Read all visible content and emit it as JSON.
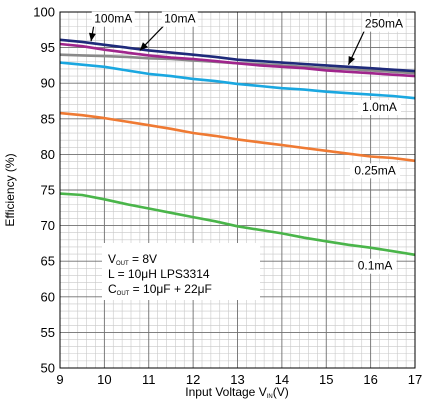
{
  "chart_data": {
    "type": "line",
    "title": "",
    "xlabel": {
      "text": "Input Voltage V",
      "sub": "IN",
      "unit": "(V)"
    },
    "ylabel": "Efficiency (%)",
    "xlim": [
      9,
      17
    ],
    "ylim": [
      50,
      100
    ],
    "x_ticks": [
      "9",
      "10",
      "11",
      "12",
      "13",
      "14",
      "15",
      "16",
      "17"
    ],
    "y_ticks": [
      "50",
      "55",
      "60",
      "65",
      "70",
      "75",
      "80",
      "85",
      "90",
      "95",
      "100"
    ],
    "grid": true,
    "x_minor_divisions": 5,
    "y_minor_divisions": 5,
    "x": [
      9,
      9.5,
      10,
      10.5,
      11,
      11.5,
      12,
      12.5,
      13,
      13.5,
      14,
      14.5,
      15,
      15.5,
      16,
      16.5,
      17
    ],
    "series": [
      {
        "name": "100mA",
        "color": "#1f2a7a",
        "values": [
          96.1,
          95.8,
          95.4,
          95.0,
          94.6,
          94.3,
          94.0,
          93.7,
          93.3,
          93.1,
          92.9,
          92.7,
          92.5,
          92.3,
          92.1,
          91.9,
          91.7
        ]
      },
      {
        "name": "10mA",
        "color": "#a0258c",
        "values": [
          95.5,
          95.2,
          94.7,
          94.3,
          93.9,
          93.6,
          93.4,
          93.1,
          92.8,
          92.5,
          92.3,
          92.1,
          91.8,
          91.6,
          91.4,
          91.2,
          91.0
        ]
      },
      {
        "name": "250mA",
        "color": "#8a8a8a",
        "values": [
          94.0,
          93.9,
          93.8,
          93.7,
          93.5,
          93.4,
          93.2,
          93.0,
          92.8,
          92.7,
          92.5,
          92.3,
          92.1,
          92.0,
          91.8,
          91.6,
          91.4
        ]
      },
      {
        "name": "1.0mA",
        "color": "#1aa7e0",
        "values": [
          92.9,
          92.6,
          92.3,
          91.8,
          91.3,
          91.0,
          90.6,
          90.3,
          89.9,
          89.6,
          89.3,
          89.1,
          88.8,
          88.6,
          88.4,
          88.2,
          87.9
        ]
      },
      {
        "name": "0.25mA",
        "color": "#ef7a33",
        "values": [
          85.8,
          85.5,
          85.1,
          84.6,
          84.1,
          83.6,
          83.0,
          82.6,
          82.1,
          81.7,
          81.3,
          80.9,
          80.5,
          80.1,
          79.7,
          79.5,
          79.1
        ]
      },
      {
        "name": "0.1mA",
        "color": "#4ab54a",
        "values": [
          74.5,
          74.3,
          73.7,
          73.0,
          72.4,
          71.8,
          71.2,
          70.6,
          69.9,
          69.4,
          68.9,
          68.3,
          67.8,
          67.3,
          66.9,
          66.4,
          65.9
        ]
      }
    ],
    "labels": [
      {
        "text": "100mA",
        "at": [
          10.2,
          98.5
        ],
        "arrow_to": [
          9.7,
          95.9
        ]
      },
      {
        "text": "10mA",
        "at": [
          11.7,
          98.5
        ],
        "arrow_to": [
          10.8,
          94.6
        ]
      },
      {
        "text": "250mA",
        "at": [
          16.3,
          97.8
        ],
        "arrow_to": [
          15.5,
          92.6
        ]
      },
      {
        "text": "1.0mA",
        "at": [
          16.2,
          86.1
        ]
      },
      {
        "text": "0.25mA",
        "at": [
          16.1,
          77.2
        ]
      },
      {
        "text": "0.1mA",
        "at": [
          16.1,
          63.8
        ]
      }
    ],
    "annotation": {
      "lines": [
        {
          "main": "V",
          "sub": "OUT",
          "rest": " = 8V"
        },
        {
          "main": "L = 10",
          "mu": "μ",
          "rest": "H LPS3314"
        },
        {
          "main": "C",
          "sub": "OUT",
          "rest": " = 10μF + 22μF"
        }
      ]
    }
  }
}
